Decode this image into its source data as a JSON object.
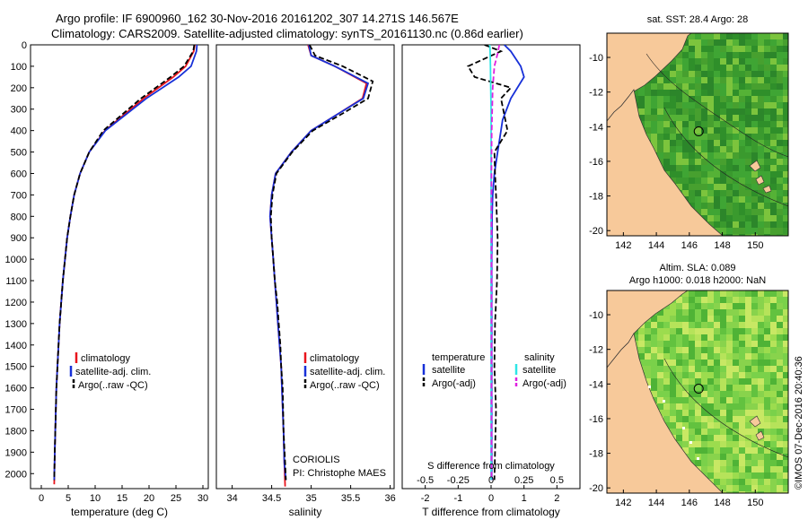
{
  "header": {
    "line1": "Argo profile: IF 6900960_162 30-Nov-2016 20161202_307 14.271S 146.567E",
    "line2": "Climatology: CARS2009. Satellite-adjusted climatology: synTS_20161130.nc (0.86d earlier)"
  },
  "credit": "©IMOS 07-Dec-2016 20:40:36",
  "colors": {
    "climatology": "#e8141c",
    "satellite": "#1730d8",
    "argo": "#000000",
    "sal_satellite": "#2ee6e6",
    "sal_argo": "#e020e0",
    "land": "#f7c99a",
    "sst_ocean": "#3a9a2e"
  },
  "chart_data": [
    {
      "type": "line",
      "name": "temperature-profile",
      "xlabel": "temperature (deg C)",
      "ylabel": "",
      "xlim": [
        -2,
        31
      ],
      "ylim": [
        2070,
        0
      ],
      "xticks": [
        0,
        5,
        10,
        15,
        20,
        25,
        30
      ],
      "yticks": [
        0,
        100,
        200,
        300,
        400,
        500,
        600,
        700,
        800,
        900,
        1000,
        1100,
        1200,
        1300,
        1400,
        1500,
        1600,
        1700,
        1800,
        1900,
        2000
      ],
      "legend": [
        "climatology",
        "satellite-adj. clim.",
        "Argo(..raw -QC)"
      ],
      "legend_position": "lower-center",
      "series": [
        {
          "name": "climatology",
          "color": "#e8141c",
          "dash": "solid",
          "x": [
            28.5,
            28.3,
            26.8,
            24.5,
            19.0,
            11.8,
            8.9,
            7.2,
            6.1,
            5.4,
            4.8,
            4.4,
            4.0,
            3.7,
            3.4,
            3.2,
            3.0,
            2.8,
            2.7,
            2.6,
            2.5,
            2.4
          ],
          "y": [
            0,
            30,
            100,
            150,
            250,
            400,
            500,
            600,
            700,
            800,
            900,
            1000,
            1100,
            1200,
            1300,
            1400,
            1500,
            1600,
            1700,
            1800,
            1900,
            2050
          ]
        },
        {
          "name": "satellite-adj. clim.",
          "color": "#1730d8",
          "dash": "solid",
          "x": [
            28.9,
            28.8,
            27.8,
            25.5,
            19.5,
            11.9,
            8.9,
            7.2,
            6.1,
            5.4,
            4.8,
            4.4,
            4.0,
            3.7,
            3.4,
            3.2,
            3.0,
            2.8,
            2.7,
            2.6,
            2.5,
            2.4
          ],
          "y": [
            0,
            30,
            100,
            150,
            250,
            400,
            500,
            600,
            700,
            800,
            900,
            1000,
            1100,
            1200,
            1300,
            1400,
            1500,
            1600,
            1700,
            1800,
            1900,
            2030
          ]
        },
        {
          "name": "Argo(..raw -QC)",
          "color": "#000000",
          "dash": "dashed",
          "x": [
            28.4,
            28.2,
            26.5,
            24.0,
            18.5,
            11.5,
            8.9,
            7.2,
            6.1,
            5.4,
            4.8,
            4.4,
            4.0,
            3.7,
            3.4,
            3.2,
            3.0,
            2.8,
            2.7,
            2.6,
            2.5,
            2.4
          ],
          "y": [
            0,
            30,
            100,
            150,
            250,
            400,
            500,
            600,
            700,
            800,
            900,
            1000,
            1100,
            1200,
            1300,
            1400,
            1500,
            1600,
            1700,
            1800,
            1900,
            2030
          ]
        }
      ]
    },
    {
      "type": "line",
      "name": "salinity-profile",
      "xlabel": "salinity",
      "xlim": [
        33.8,
        36.05
      ],
      "ylim": [
        2070,
        0
      ],
      "xticks": [
        34,
        34.5,
        35,
        35.5,
        36
      ],
      "legend": [
        "climatology",
        "satellite-adj. clim.",
        "Argo(..raw -QC)"
      ],
      "legend_position": "lower-center",
      "annotations": [
        "CORIOLIS",
        "PI: Christophe MAES"
      ],
      "series": [
        {
          "name": "climatology",
          "color": "#e8141c",
          "dash": "solid",
          "x": [
            34.96,
            35.0,
            35.3,
            35.7,
            35.65,
            35.35,
            35.0,
            34.75,
            34.55,
            34.5,
            34.48,
            34.5,
            34.52,
            34.54,
            34.56,
            34.58,
            34.6,
            34.62,
            34.63,
            34.65,
            34.66,
            34.67
          ],
          "y": [
            0,
            50,
            100,
            180,
            250,
            320,
            400,
            500,
            600,
            700,
            800,
            900,
            1000,
            1100,
            1200,
            1300,
            1400,
            1500,
            1600,
            1800,
            1950,
            2060
          ]
        },
        {
          "name": "satellite-adj. clim.",
          "color": "#1730d8",
          "dash": "solid",
          "x": [
            34.97,
            35.0,
            35.3,
            35.72,
            35.66,
            35.35,
            35.0,
            34.75,
            34.55,
            34.5,
            34.48,
            34.5,
            34.52,
            34.54,
            34.56,
            34.58,
            34.6,
            34.62,
            34.63,
            34.65,
            34.66,
            34.68
          ],
          "y": [
            0,
            50,
            100,
            180,
            250,
            320,
            400,
            500,
            600,
            700,
            800,
            900,
            1000,
            1100,
            1200,
            1300,
            1400,
            1500,
            1600,
            1800,
            1950,
            2030
          ]
        },
        {
          "name": "Argo(..raw -QC)",
          "color": "#000000",
          "dash": "dashed",
          "x": [
            34.98,
            35.05,
            35.4,
            35.78,
            35.72,
            35.4,
            35.02,
            34.76,
            34.56,
            34.51,
            34.49,
            34.5,
            34.52,
            34.54,
            34.57,
            34.59,
            34.61,
            34.62,
            34.64,
            34.65,
            34.67,
            34.68
          ],
          "y": [
            0,
            50,
            100,
            170,
            250,
            320,
            400,
            500,
            600,
            700,
            800,
            900,
            1000,
            1100,
            1200,
            1300,
            1400,
            1500,
            1600,
            1800,
            1950,
            2030
          ]
        }
      ]
    },
    {
      "type": "line",
      "name": "difference-profile",
      "xlabel": "T difference from climatology",
      "xlabel_top": "S difference from climatology",
      "xlim": [
        -2.7,
        2.7
      ],
      "ylim": [
        2070,
        0
      ],
      "xticks": [
        -2,
        -1,
        0,
        1,
        2
      ],
      "xticks_top": [
        "-0.5",
        "-0.25",
        "0",
        "0.25",
        "0.5"
      ],
      "legend_headers": [
        "temperature",
        "salinity"
      ],
      "legend": [
        "satellite",
        "Argo(-adj)",
        "satellite",
        "Argo(-adj)"
      ],
      "series": [
        {
          "name": "temperature satellite",
          "color": "#1730d8",
          "dash": "solid",
          "x": [
            0.4,
            0.6,
            0.9,
            1.0,
            0.6,
            0.35,
            0.3,
            0.2,
            0.1,
            0.05,
            0.03,
            0.02,
            0.02,
            0.02
          ],
          "y": [
            0,
            30,
            100,
            150,
            250,
            350,
            400,
            500,
            600,
            700,
            800,
            1000,
            1500,
            2030
          ]
        },
        {
          "name": "temperature Argo(-adj)",
          "color": "#000000",
          "dash": "dashed",
          "x": [
            -0.2,
            0.3,
            -0.7,
            -0.5,
            0.6,
            0.3,
            0.5,
            0.1,
            0.12,
            0.15,
            0.2,
            0.18,
            0.12,
            0.1,
            0.15,
            0.12,
            0.1
          ],
          "y": [
            0,
            30,
            100,
            150,
            200,
            250,
            400,
            500,
            600,
            700,
            900,
            1100,
            1300,
            1500,
            1700,
            1900,
            2030
          ]
        },
        {
          "name": "salinity satellite",
          "color": "#2ee6e6",
          "dash": "solid",
          "x": [
            -0.04,
            -0.03,
            -0.02,
            -0.01,
            0.0,
            0.0,
            0.0,
            0.0
          ],
          "y": [
            0,
            30,
            100,
            200,
            300,
            600,
            1200,
            2030
          ]
        },
        {
          "name": "salinity Argo(-adj)",
          "color": "#e020e0",
          "dash": "dashed",
          "x": [
            0.25,
            0.2,
            0.1,
            0.05,
            0.02,
            0.01,
            0.01,
            0.01,
            0.01
          ],
          "y": [
            0,
            40,
            100,
            200,
            400,
            600,
            1000,
            1500,
            2030
          ]
        }
      ]
    },
    {
      "type": "heatmap",
      "name": "sst-map",
      "title": "sat. SST: 28.4  Argo: 28",
      "xticks": [
        142,
        144,
        146,
        148,
        150
      ],
      "yticks": [
        -10,
        -12,
        -14,
        -16,
        -18,
        -20
      ],
      "xlim": [
        141,
        152
      ],
      "ylim": [
        -20.3,
        -8.6
      ],
      "float_position": [
        146.567,
        -14.271
      ]
    },
    {
      "type": "heatmap",
      "name": "sla-map",
      "title_line1": "Altim. SLA: 0.089",
      "title_line2": "Argo h1000: 0.018 h2000: NaN",
      "xticks": [
        142,
        144,
        146,
        148,
        150
      ],
      "yticks": [
        -10,
        -12,
        -14,
        -16,
        -18,
        -20
      ],
      "xlim": [
        141,
        152
      ],
      "ylim": [
        -20.3,
        -8.6
      ],
      "float_position": [
        146.567,
        -14.271
      ]
    }
  ]
}
